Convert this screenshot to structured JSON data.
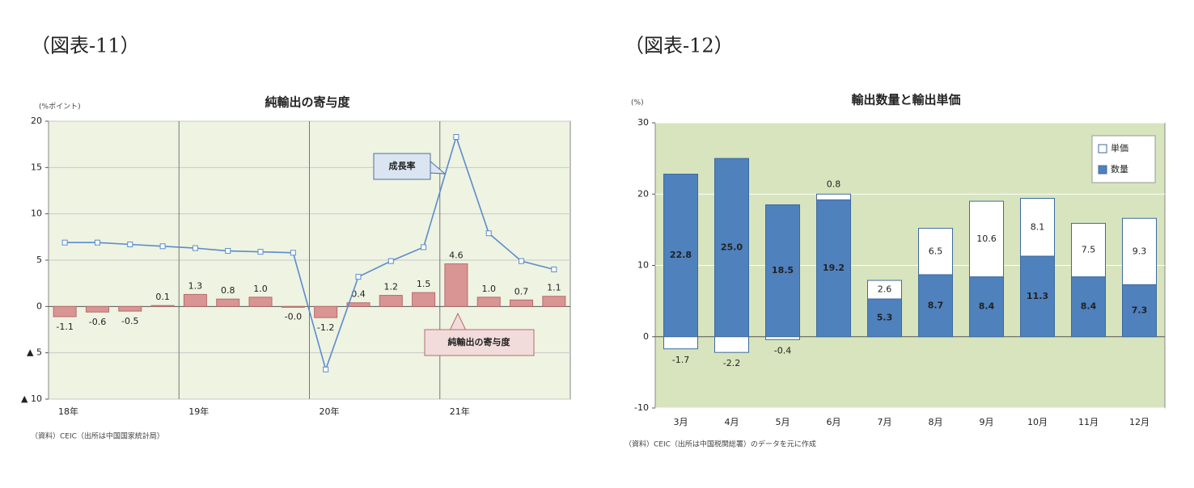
{
  "chart_data": [
    {
      "type": "combo",
      "heading": "（図表-11）",
      "title": "純輸出の寄与度",
      "ylabel": "(%ポイント)",
      "categories": [
        "18年",
        null,
        null,
        null,
        "19年",
        null,
        null,
        null,
        "20年",
        null,
        null,
        null,
        "21年",
        null,
        null,
        null
      ],
      "series": [
        {
          "name": "純輸出の寄与度",
          "type": "bar",
          "color": "#d99594",
          "values": [
            -1.1,
            -0.6,
            -0.5,
            0.1,
            1.3,
            0.8,
            1.0,
            -0.0,
            -1.2,
            0.4,
            1.2,
            1.5,
            4.6,
            1.0,
            0.7,
            1.1
          ],
          "value_labels": [
            "-1.1",
            "-0.6",
            "-0.5",
            "0.1",
            "1.3",
            "0.8",
            "1.0",
            "-0.0",
            "-1.2",
            "0.4",
            "1.2",
            "1.5",
            "4.6",
            "1.0",
            "0.7",
            "1.1"
          ]
        },
        {
          "name": "成長率",
          "type": "line",
          "color": "#5b8ccc",
          "values": [
            6.9,
            6.9,
            6.7,
            6.5,
            6.3,
            6.0,
            5.9,
            5.8,
            -6.8,
            3.2,
            4.9,
            6.4,
            18.3,
            7.9,
            4.9,
            4.0
          ]
        }
      ],
      "ylim": [
        -10,
        20
      ],
      "yticks": [
        {
          "value": -10,
          "label": "▲ 10"
        },
        {
          "value": -5,
          "label": "▲ 5"
        },
        0,
        5,
        10,
        15,
        20
      ],
      "grid": true,
      "source": "（資料）CEIC（出所は中国国家統計局）"
    },
    {
      "type": "stacked_bar",
      "heading": "（図表-12）",
      "title": "輸出数量と輸出単価",
      "ylabel": "(%)",
      "categories": [
        "3月",
        "4月",
        "5月",
        "6月",
        "7月",
        "8月",
        "9月",
        "10月",
        "11月",
        "12月"
      ],
      "series": [
        {
          "name": "数量",
          "color": "#4f81bd",
          "values": [
            22.8,
            25.0,
            18.5,
            19.2,
            5.3,
            8.7,
            8.4,
            11.3,
            8.4,
            7.3
          ],
          "value_labels": [
            "22.8",
            "25.0",
            "18.5",
            "19.2",
            "5.3",
            "8.7",
            "8.4",
            "11.3",
            "8.4",
            "7.3"
          ]
        },
        {
          "name": "単価",
          "color": "#ffffff",
          "values": [
            -1.7,
            -2.2,
            -0.4,
            0.8,
            2.6,
            6.5,
            10.6,
            8.1,
            7.5,
            9.3
          ]
        }
      ],
      "ylim": [
        -10,
        30
      ],
      "yticks": [
        -10,
        0,
        10,
        20,
        30
      ],
      "grid": true,
      "legend": "top-right",
      "source": "（資料）CEIC（出所は中国税関総署）のデータを元に作成"
    }
  ]
}
